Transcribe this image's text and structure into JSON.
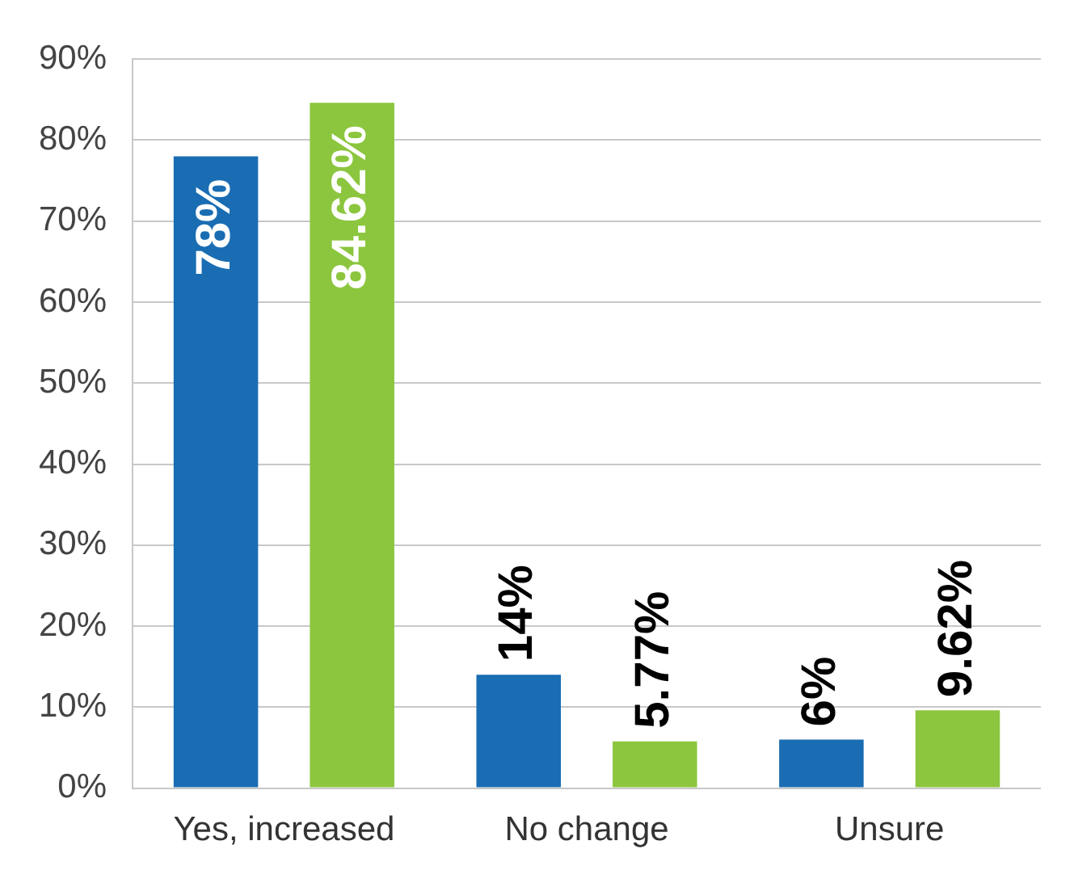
{
  "chart_data": {
    "type": "bar",
    "categories": [
      "Yes, increased",
      "No change",
      "Unsure"
    ],
    "series": [
      {
        "color": "#1a6db3",
        "values": [
          78,
          14,
          6
        ],
        "value_labels": [
          "78%",
          "14%",
          "6%"
        ]
      },
      {
        "color": "#8cc63f",
        "values": [
          84.62,
          5.77,
          9.62
        ],
        "value_labels": [
          "84.62%",
          "5.77%",
          "9.62%"
        ]
      }
    ],
    "ylim": [
      0,
      90
    ],
    "yticks": [
      {
        "value": 0,
        "label": "0%"
      },
      {
        "value": 10,
        "label": "10%"
      },
      {
        "value": 20,
        "label": "20%"
      },
      {
        "value": 30,
        "label": "30%"
      },
      {
        "value": 40,
        "label": "40%"
      },
      {
        "value": 50,
        "label": "50%"
      },
      {
        "value": 60,
        "label": "60%"
      },
      {
        "value": 70,
        "label": "70%"
      },
      {
        "value": 80,
        "label": "80%"
      },
      {
        "value": 90,
        "label": "90%"
      }
    ],
    "grid": "y",
    "legend": false
  }
}
